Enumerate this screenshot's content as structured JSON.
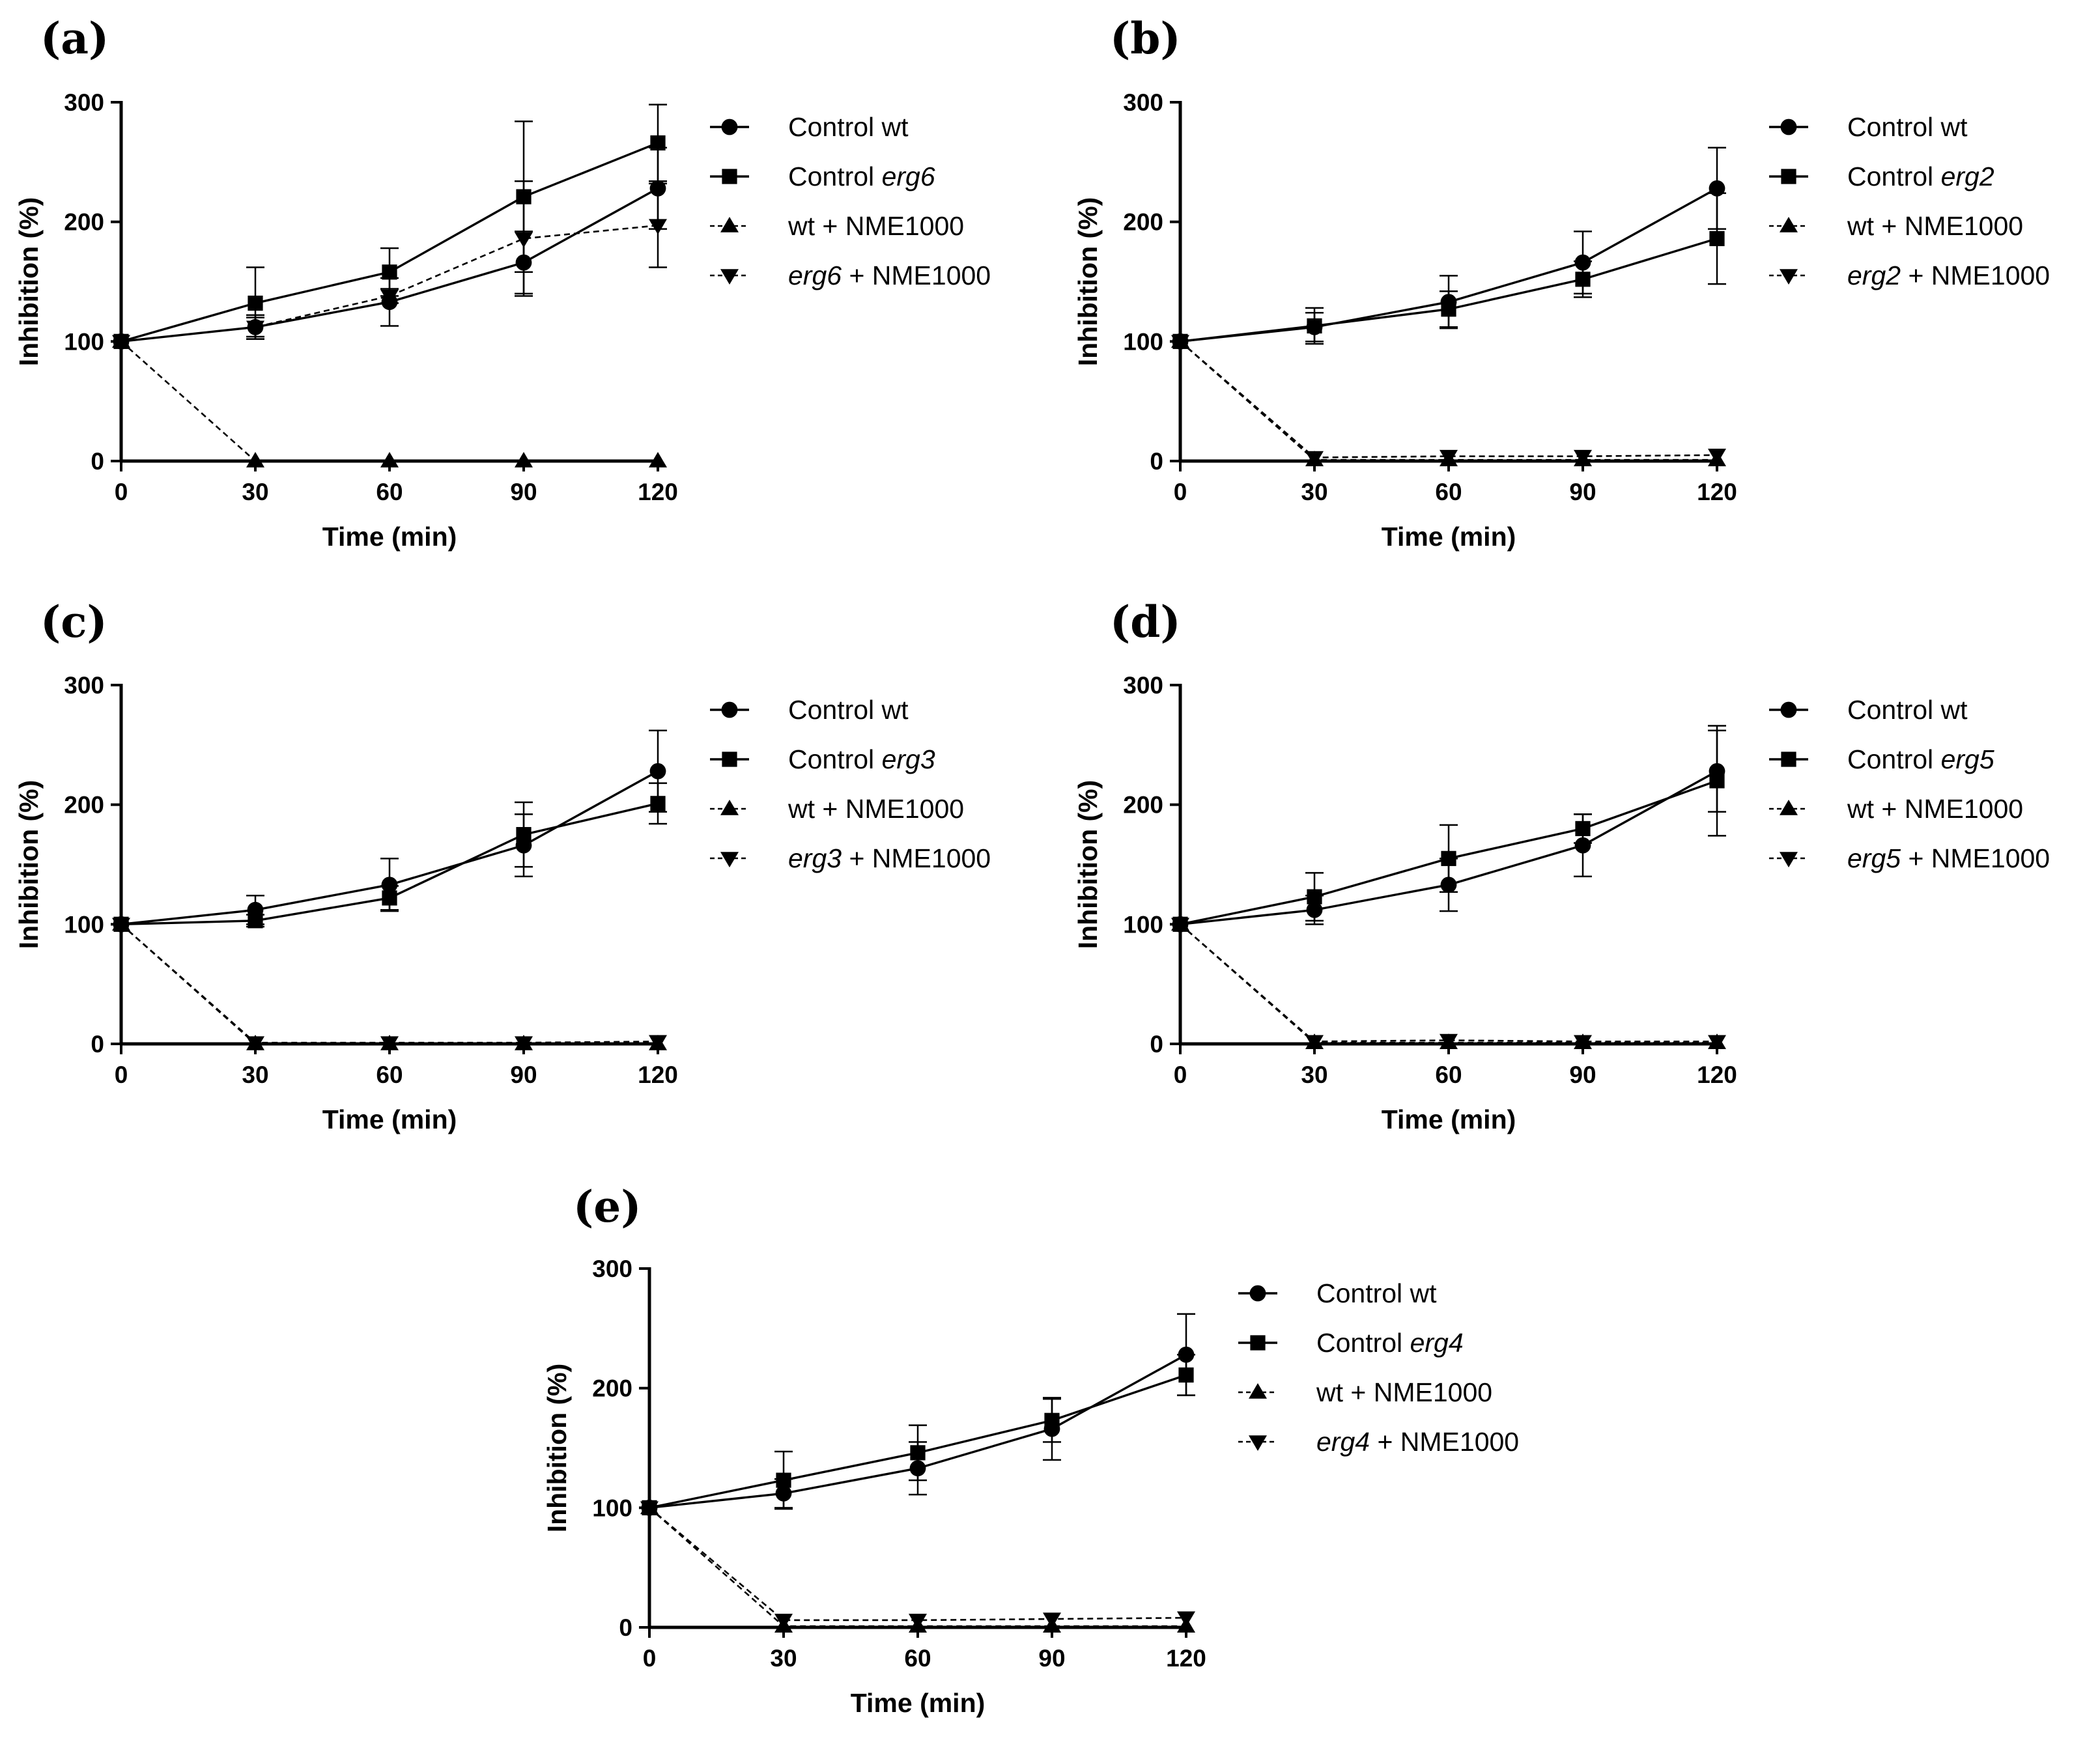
{
  "chart_data": [
    {
      "type": "line",
      "panel": "(a)",
      "mutant": "erg6",
      "xlabel": "Time (min)",
      "ylabel": "Inhibition (%)",
      "x": [
        0,
        30,
        60,
        90,
        120
      ],
      "xticks": [
        "0",
        "30",
        "60",
        "90",
        "120"
      ],
      "yticks": [
        "0",
        "100",
        "200",
        "300"
      ],
      "xlim": [
        0,
        120
      ],
      "ylim": [
        0,
        300
      ],
      "legend_position": "right",
      "series": [
        {
          "name": "Control wt",
          "marker": "circle",
          "dash": false,
          "values": [
            100,
            112,
            133,
            166,
            228
          ],
          "errors": [
            0,
            10,
            20,
            26,
            34
          ]
        },
        {
          "name": "Control erg6",
          "name_parts": [
            {
              "t": "Control "
            },
            {
              "t": "erg6",
              "i": true
            }
          ],
          "marker": "square",
          "dash": false,
          "values": [
            100,
            132,
            158,
            221,
            266
          ],
          "errors": [
            0,
            30,
            20,
            63,
            32
          ]
        },
        {
          "name": "wt + NME1000",
          "name_parts": [
            {
              "t": "wt + NME1000"
            }
          ],
          "marker": "triangle-up",
          "dash": true,
          "values": [
            100,
            0,
            0,
            0,
            0
          ],
          "errors": [
            0,
            0,
            0,
            0,
            0
          ]
        },
        {
          "name": "erg6 + NME1000",
          "name_parts": [
            {
              "t": "erg6",
              "i": true
            },
            {
              "t": " + NME1000"
            }
          ],
          "marker": "triangle-down",
          "dash": true,
          "values": [
            100,
            112,
            138,
            186,
            197
          ],
          "errors": [
            0,
            8,
            6,
            48,
            35
          ]
        }
      ]
    },
    {
      "type": "line",
      "panel": "(b)",
      "mutant": "erg2",
      "xlabel": "Time (min)",
      "ylabel": "Inhibition (%)",
      "x": [
        0,
        30,
        60,
        90,
        120
      ],
      "xticks": [
        "0",
        "30",
        "60",
        "90",
        "120"
      ],
      "yticks": [
        "0",
        "100",
        "200",
        "300"
      ],
      "xlim": [
        0,
        120
      ],
      "ylim": [
        0,
        300
      ],
      "legend_position": "right",
      "series": [
        {
          "name": "Control wt",
          "marker": "circle",
          "dash": false,
          "values": [
            100,
            112,
            133,
            166,
            228
          ],
          "errors": [
            0,
            12,
            22,
            26,
            34
          ]
        },
        {
          "name": "Control erg2",
          "name_parts": [
            {
              "t": "Control "
            },
            {
              "t": "erg2",
              "i": true
            }
          ],
          "marker": "square",
          "dash": false,
          "values": [
            100,
            113,
            127,
            152,
            186
          ],
          "errors": [
            0,
            15,
            15,
            15,
            38
          ]
        },
        {
          "name": "wt + NME1000",
          "name_parts": [
            {
              "t": "wt + NME1000"
            }
          ],
          "marker": "triangle-up",
          "dash": true,
          "values": [
            100,
            1,
            1,
            1,
            1
          ],
          "errors": [
            0,
            0,
            0,
            0,
            0
          ]
        },
        {
          "name": "erg2 + NME1000",
          "name_parts": [
            {
              "t": "erg2",
              "i": true
            },
            {
              "t": " + NME1000"
            }
          ],
          "marker": "triangle-down",
          "dash": true,
          "values": [
            100,
            3,
            4,
            4,
            5
          ],
          "errors": [
            0,
            0,
            0,
            0,
            0
          ]
        }
      ]
    },
    {
      "type": "line",
      "panel": "(c)",
      "mutant": "erg3",
      "xlabel": "Time (min)",
      "ylabel": "Inhibition (%)",
      "x": [
        0,
        30,
        60,
        90,
        120
      ],
      "xticks": [
        "0",
        "30",
        "60",
        "90",
        "120"
      ],
      "yticks": [
        "0",
        "100",
        "200",
        "300"
      ],
      "xlim": [
        0,
        120
      ],
      "ylim": [
        0,
        300
      ],
      "legend_position": "right",
      "series": [
        {
          "name": "Control wt",
          "marker": "circle",
          "dash": false,
          "values": [
            100,
            112,
            133,
            166,
            228
          ],
          "errors": [
            0,
            12,
            22,
            26,
            34
          ]
        },
        {
          "name": "Control erg3",
          "name_parts": [
            {
              "t": "Control "
            },
            {
              "t": "erg3",
              "i": true
            }
          ],
          "marker": "square",
          "dash": false,
          "values": [
            100,
            103,
            122,
            175,
            201
          ],
          "errors": [
            0,
            5,
            10,
            27,
            17
          ]
        },
        {
          "name": "wt + NME1000",
          "name_parts": [
            {
              "t": "wt + NME1000"
            }
          ],
          "marker": "triangle-up",
          "dash": true,
          "values": [
            100,
            0,
            0,
            0,
            0
          ],
          "errors": [
            0,
            0,
            0,
            0,
            0
          ]
        },
        {
          "name": "erg3 + NME1000",
          "name_parts": [
            {
              "t": "erg3",
              "i": true
            },
            {
              "t": " + NME1000"
            }
          ],
          "marker": "triangle-down",
          "dash": true,
          "values": [
            100,
            1,
            1,
            1,
            2
          ],
          "errors": [
            0,
            0,
            0,
            0,
            0
          ]
        }
      ]
    },
    {
      "type": "line",
      "panel": "(d)",
      "mutant": "erg5",
      "xlabel": "Time (min)",
      "ylabel": "Inhibition (%)",
      "x": [
        0,
        30,
        60,
        90,
        120
      ],
      "xticks": [
        "0",
        "30",
        "60",
        "90",
        "120"
      ],
      "yticks": [
        "0",
        "100",
        "200",
        "300"
      ],
      "xlim": [
        0,
        120
      ],
      "ylim": [
        0,
        300
      ],
      "legend_position": "right",
      "series": [
        {
          "name": "Control wt",
          "marker": "circle",
          "dash": false,
          "values": [
            100,
            112,
            133,
            166,
            228
          ],
          "errors": [
            0,
            12,
            22,
            26,
            34
          ]
        },
        {
          "name": "Control erg5",
          "name_parts": [
            {
              "t": "Control "
            },
            {
              "t": "erg5",
              "i": true
            }
          ],
          "marker": "square",
          "dash": false,
          "values": [
            100,
            123,
            155,
            180,
            220
          ],
          "errors": [
            0,
            20,
            28,
            12,
            46
          ]
        },
        {
          "name": "wt + NME1000",
          "name_parts": [
            {
              "t": "wt + NME1000"
            }
          ],
          "marker": "triangle-up",
          "dash": true,
          "values": [
            100,
            1,
            1,
            1,
            1
          ],
          "errors": [
            0,
            0,
            0,
            0,
            0
          ]
        },
        {
          "name": "erg5 + NME1000",
          "name_parts": [
            {
              "t": "erg5",
              "i": true
            },
            {
              "t": " + NME1000"
            }
          ],
          "marker": "triangle-down",
          "dash": true,
          "values": [
            100,
            2,
            3,
            2,
            2
          ],
          "errors": [
            0,
            0,
            0,
            0,
            0
          ]
        }
      ]
    },
    {
      "type": "line",
      "panel": "(e)",
      "mutant": "erg4",
      "xlabel": "Time (min)",
      "ylabel": "Inhibition (%)",
      "x": [
        0,
        30,
        60,
        90,
        120
      ],
      "xticks": [
        "0",
        "30",
        "60",
        "90",
        "120"
      ],
      "yticks": [
        "0",
        "100",
        "200",
        "300"
      ],
      "xlim": [
        0,
        120
      ],
      "ylim": [
        0,
        300
      ],
      "legend_position": "right",
      "series": [
        {
          "name": "Control wt",
          "marker": "circle",
          "dash": false,
          "values": [
            100,
            112,
            133,
            166,
            228
          ],
          "errors": [
            0,
            12,
            22,
            26,
            34
          ]
        },
        {
          "name": "Control erg4",
          "name_parts": [
            {
              "t": "Control "
            },
            {
              "t": "erg4",
              "i": true
            }
          ],
          "marker": "square",
          "dash": false,
          "values": [
            100,
            123,
            146,
            173,
            211
          ],
          "errors": [
            0,
            24,
            23,
            18,
            17
          ]
        },
        {
          "name": "wt + NME1000",
          "name_parts": [
            {
              "t": "wt + NME1000"
            }
          ],
          "marker": "triangle-up",
          "dash": true,
          "values": [
            100,
            1,
            1,
            1,
            1
          ],
          "errors": [
            0,
            0,
            0,
            0,
            0
          ]
        },
        {
          "name": "erg4 + NME1000",
          "name_parts": [
            {
              "t": "erg4",
              "i": true
            },
            {
              "t": " + NME1000"
            }
          ],
          "marker": "triangle-down",
          "dash": true,
          "values": [
            100,
            6,
            6,
            7,
            8
          ],
          "errors": [
            0,
            0,
            0,
            0,
            0
          ]
        }
      ]
    }
  ]
}
